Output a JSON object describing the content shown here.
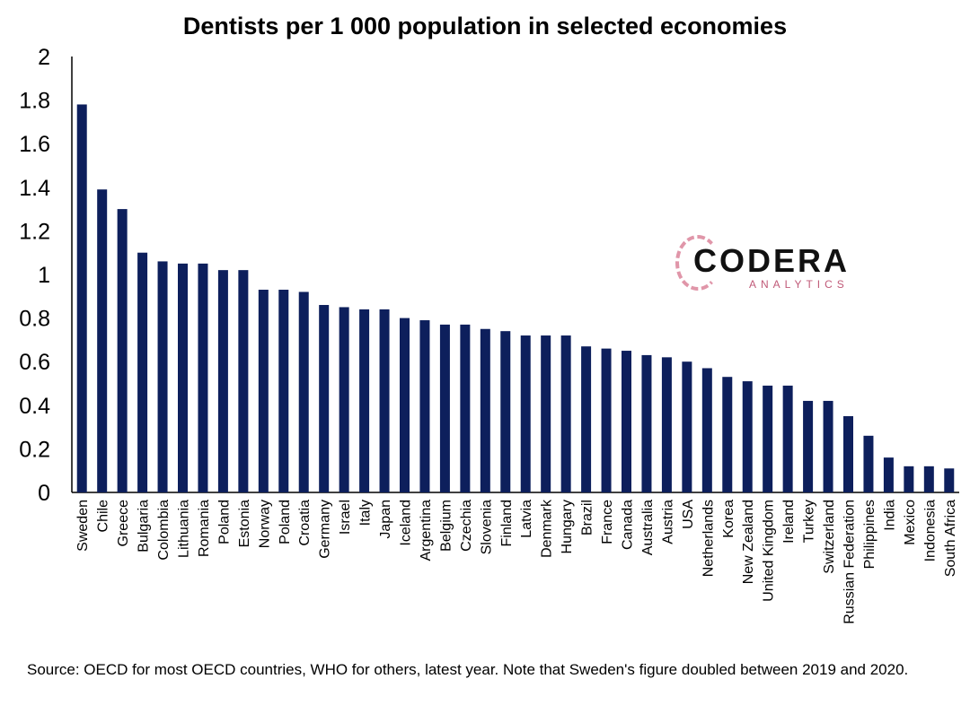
{
  "chart_data": {
    "type": "bar",
    "title": "Dentists per 1 000 population in selected economies",
    "xlabel": "",
    "ylabel": "",
    "ylim": [
      0,
      2
    ],
    "yticks": [
      "0",
      "0.2",
      "0.4",
      "0.6",
      "0.8",
      "1",
      "1.2",
      "1.4",
      "1.6",
      "1.8",
      "2"
    ],
    "grid": false,
    "bar_color": "#0d1f5c",
    "categories": [
      "Sweden",
      "Chile",
      "Greece",
      "Bulgaria",
      "Colombia",
      "Lithuania",
      "Romania",
      "Poland",
      "Estonia",
      "Norway",
      "Poland",
      "Croatia",
      "Germany",
      "Israel",
      "Italy",
      "Japan",
      "Iceland",
      "Argentina",
      "Belgium",
      "Czechia",
      "Slovenia",
      "Finland",
      "Latvia",
      "Denmark",
      "Hungary",
      "Brazil",
      "France",
      "Canada",
      "Australia",
      "Austria",
      "USA",
      "Netherlands",
      "Korea",
      "New Zealand",
      "United Kingdom",
      "Ireland",
      "Turkey",
      "Switzerland",
      "Russian Federation",
      "Philippines",
      "India",
      "Mexico",
      "Indonesia",
      "South Africa"
    ],
    "values": [
      1.78,
      1.39,
      1.3,
      1.1,
      1.06,
      1.05,
      1.05,
      1.02,
      1.02,
      0.93,
      0.93,
      0.92,
      0.86,
      0.85,
      0.84,
      0.84,
      0.8,
      0.79,
      0.77,
      0.77,
      0.75,
      0.74,
      0.72,
      0.72,
      0.72,
      0.67,
      0.66,
      0.65,
      0.63,
      0.62,
      0.6,
      0.57,
      0.53,
      0.51,
      0.49,
      0.49,
      0.42,
      0.42,
      0.35,
      0.26,
      0.16,
      0.12,
      0.12,
      0.11
    ]
  },
  "source": "Source: OECD for most OECD countries, WHO for others, latest year. Note that Sweden's figure doubled between 2019 and 2020.",
  "logo": {
    "name": "CODERA",
    "sub": "ANALYTICS"
  }
}
